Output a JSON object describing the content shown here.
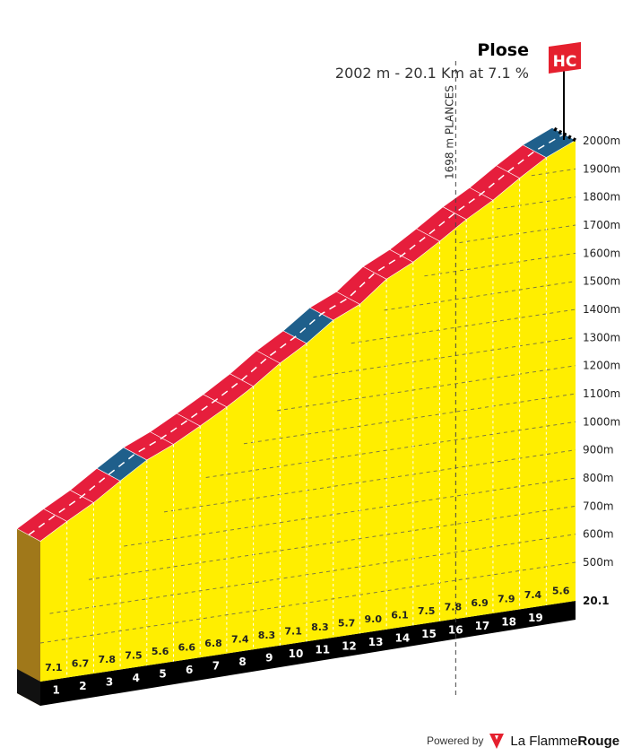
{
  "climb": {
    "name": "Plose",
    "subtitle": "2002 m - 20.1 Km at 7.1 %",
    "category": "HC",
    "category_color": "#e5202e"
  },
  "waypoint": {
    "label": "1698 m PLANCES",
    "km": 15.6
  },
  "footer": {
    "powered_by": "Powered by",
    "brand_light": "La Flamme",
    "brand_bold": "Rouge"
  },
  "colors": {
    "fill": "#ffee00",
    "road_steep": "#e61e3c",
    "road_easy": "#1f5f8b",
    "base": "#000000",
    "side": "#a0781a"
  },
  "chart_data": {
    "type": "area",
    "title": "Plose",
    "subtitle": "2002 m - 20.1 Km at 7.1 %",
    "total_km": 20.1,
    "start_altitude": 575,
    "summit_altitude": 2002,
    "y_range": [
      500,
      2000
    ],
    "y_ticks": [
      "500m",
      "600m",
      "700m",
      "800m",
      "900m",
      "1000m",
      "1100m",
      "1200m",
      "1300m",
      "1400m",
      "1500m",
      "1600m",
      "1700m",
      "1800m",
      "1900m",
      "2000m"
    ],
    "km_labels": [
      "1",
      "2",
      "3",
      "4",
      "5",
      "6",
      "7",
      "8",
      "9",
      "10",
      "11",
      "12",
      "13",
      "14",
      "15",
      "16",
      "17",
      "18",
      "19"
    ],
    "end_label": "20.1",
    "gradients": [
      "7.1",
      "6.7",
      "7.8",
      "7.5",
      "5.6",
      "6.6",
      "6.8",
      "7.4",
      "8.3",
      "7.1",
      "8.3",
      "5.7",
      "9.0",
      "6.1",
      "7.5",
      "7.8",
      "6.9",
      "7.9",
      "7.4",
      "5.6"
    ],
    "segment_difficulty": [
      "steep",
      "steep",
      "steep",
      "easy",
      "steep",
      "steep",
      "steep",
      "steep",
      "steep",
      "steep",
      "easy",
      "steep",
      "steep",
      "steep",
      "steep",
      "steep",
      "steep",
      "steep",
      "steep",
      "easy"
    ],
    "grid": true
  }
}
